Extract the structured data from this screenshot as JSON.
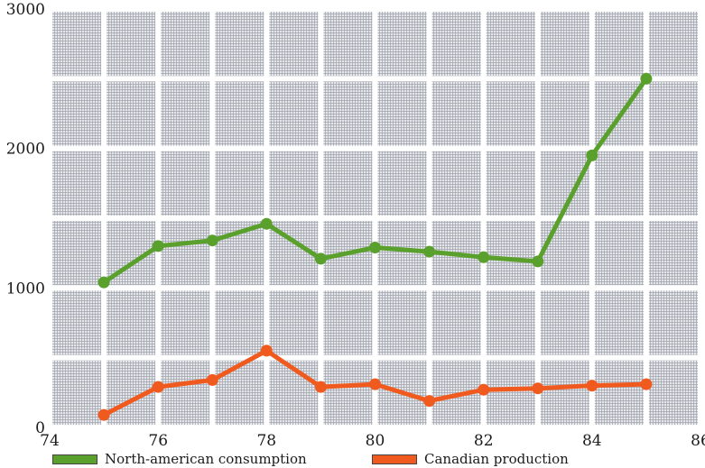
{
  "chart_data": {
    "type": "line",
    "title": "",
    "xlabel": "",
    "ylabel": "",
    "xlim": [
      74,
      86
    ],
    "ylim": [
      0,
      3000
    ],
    "grid": true,
    "x_ticks": [
      "74",
      "76",
      "78",
      "80",
      "82",
      "84",
      "86"
    ],
    "y_ticks": [
      "0",
      "1000",
      "2000",
      "3000"
    ],
    "x": [
      75,
      76,
      77,
      78,
      79,
      80,
      81,
      82,
      83,
      84,
      85
    ],
    "series": [
      {
        "name": "North-american consumption",
        "color": "#5aa02c",
        "values": [
          1040,
          1300,
          1340,
          1460,
          1210,
          1290,
          1260,
          1220,
          1190,
          1950,
          2500
        ]
      },
      {
        "name": "Canadian production",
        "color": "#f05a1e",
        "values": [
          90,
          290,
          340,
          550,
          290,
          310,
          190,
          270,
          280,
          300,
          310
        ]
      }
    ],
    "legend_position": "bottom"
  }
}
